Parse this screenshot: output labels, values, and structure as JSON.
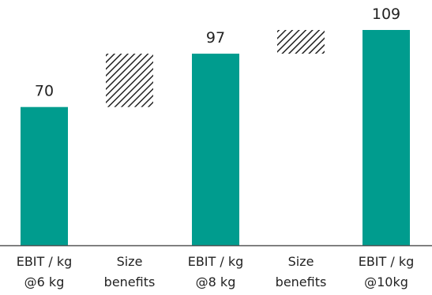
{
  "colors": {
    "bar": "#009c8e",
    "hatch": "#222222",
    "axis": "#555555"
  },
  "chart_data": {
    "type": "bar",
    "subtype": "waterfall",
    "categories": [
      [
        "EBIT / kg",
        "@6 kg"
      ],
      [
        "Size",
        "benefits"
      ],
      [
        "EBIT / kg",
        "@8 kg"
      ],
      [
        "Size",
        "benefits"
      ],
      [
        "EBIT / kg",
        "@10kg"
      ]
    ],
    "bars": [
      {
        "kind": "total",
        "value": 70,
        "label": "70"
      },
      {
        "kind": "delta",
        "start": 70,
        "end": 97
      },
      {
        "kind": "total",
        "value": 97,
        "label": "97"
      },
      {
        "kind": "delta",
        "start": 97,
        "end": 109
      },
      {
        "kind": "total",
        "value": 109,
        "label": "109"
      }
    ],
    "ylim": [
      0,
      109
    ],
    "grid": false,
    "legend": "none"
  }
}
